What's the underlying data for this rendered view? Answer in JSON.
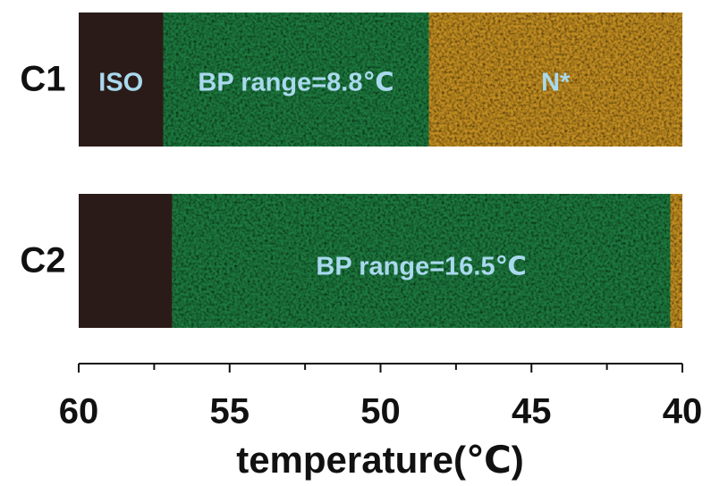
{
  "chart_data": {
    "type": "range_bar",
    "x_label": "temperature(℃)",
    "xlim": [
      60,
      40
    ],
    "xticks": [
      60,
      55,
      50,
      45,
      40
    ],
    "xminorticks": [
      57.5,
      52.5,
      47.5,
      42.5
    ],
    "rows": [
      {
        "name": "C1",
        "segments": [
          {
            "label": "ISO",
            "start": 60,
            "end": 57.2,
            "color": "#2b1b18"
          },
          {
            "label": "BP range=8.8℃",
            "start": 57.2,
            "end": 48.4,
            "color": "#1e7a3f"
          },
          {
            "label": "N*",
            "start": 48.4,
            "end": 40,
            "color": "#c48f22"
          }
        ]
      },
      {
        "name": "C2",
        "segments": [
          {
            "start": 60,
            "end": 56.9,
            "color": "#2b1b18"
          },
          {
            "label": "BP range=16.5℃",
            "start": 56.9,
            "end": 40.4,
            "color": "#1e7a3f"
          },
          {
            "start": 40.4,
            "end": 40,
            "color": "#c48f22"
          }
        ]
      }
    ]
  }
}
